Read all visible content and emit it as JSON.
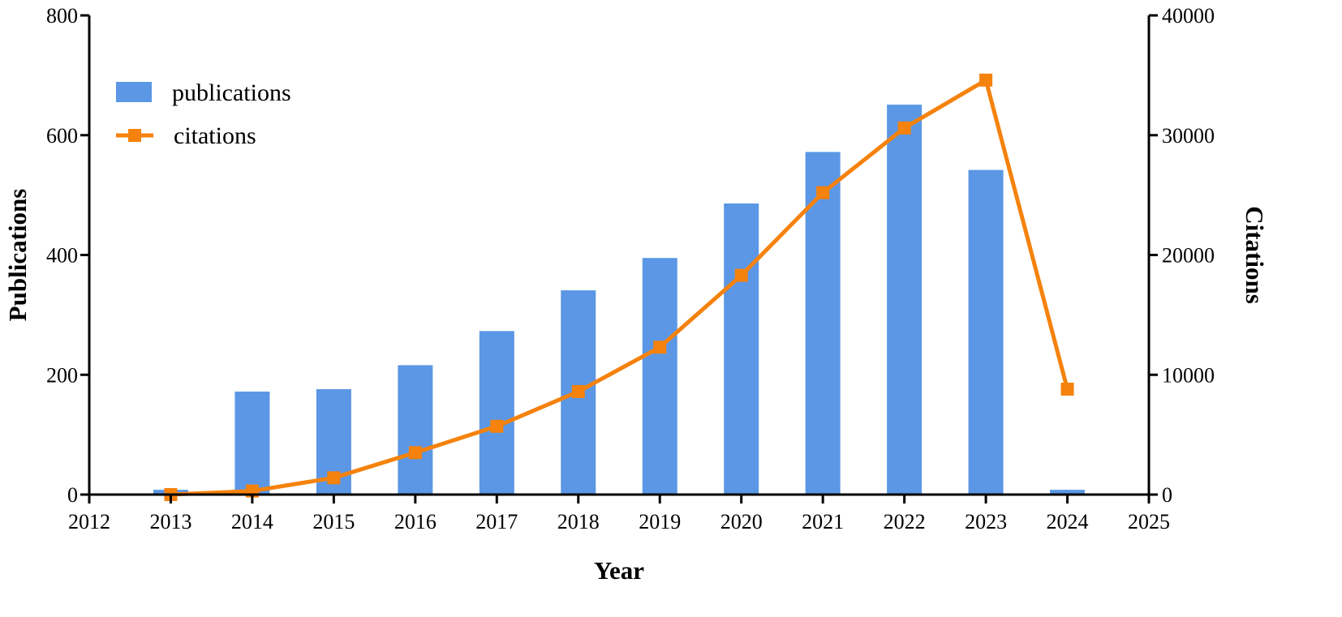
{
  "chart_data": {
    "type": "bar+line",
    "x": [
      2013,
      2014,
      2015,
      2016,
      2017,
      2018,
      2019,
      2020,
      2021,
      2022,
      2023,
      2024
    ],
    "xlabel": "Year",
    "xlim": [
      2012,
      2025
    ],
    "xticks": [
      "2012",
      "2013",
      "2014",
      "2015",
      "2016",
      "2017",
      "2018",
      "2019",
      "2020",
      "2021",
      "2022",
      "2023",
      "2024",
      "2025"
    ],
    "ylabel_left": "Publications",
    "ylim_left": [
      0,
      800
    ],
    "yticks_left": [
      "0",
      "200",
      "400",
      "600",
      "800"
    ],
    "ylabel_right": "Citations",
    "ylim_right": [
      0,
      40000
    ],
    "yticks_right": [
      "0",
      "10000",
      "20000",
      "30000",
      "40000"
    ],
    "series": [
      {
        "name": "publications",
        "type": "bar",
        "axis": "left",
        "color": "#5b97e5",
        "values": [
          8,
          172,
          176,
          216,
          273,
          341,
          395,
          486,
          572,
          651,
          542,
          8
        ]
      },
      {
        "name": "citations",
        "type": "line",
        "axis": "right",
        "color": "#f5820d",
        "marker": "square",
        "values": [
          0,
          300,
          1400,
          3500,
          5700,
          8600,
          12300,
          18300,
          25200,
          30600,
          34600,
          8800
        ]
      }
    ],
    "legend": {
      "position": "top-left"
    },
    "grid": false
  }
}
